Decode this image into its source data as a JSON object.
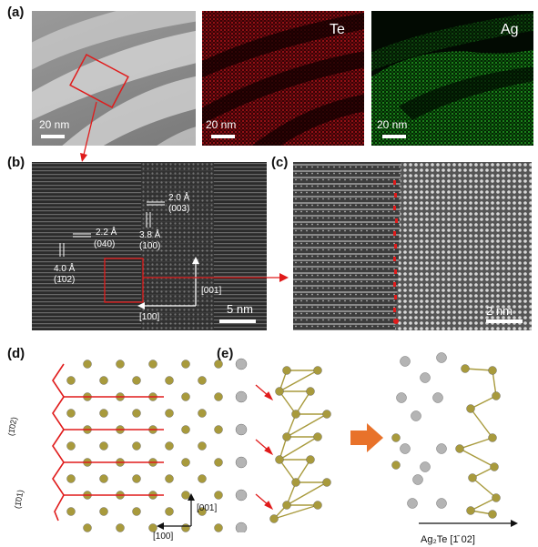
{
  "panels": {
    "a": "(a)",
    "b": "(b)",
    "c": "(c)",
    "d": "(d)",
    "e": "(e)"
  },
  "panel_a": {
    "scale1": "20 nm",
    "scale2": "20 nm",
    "scale3": "20 nm",
    "te_label": "Te",
    "ag_label": "Ag"
  },
  "panel_b": {
    "d1": "2.0 Å",
    "d1_plane": "(003)",
    "d2": "2.2 Å",
    "d2_plane": "(040)",
    "d3": "3.8 Å",
    "d3_plane": "(100)",
    "d4": "4.0 Å",
    "d4_plane": "(1̄02)",
    "axis_001": "[001]",
    "axis_100": "[100]",
    "scale": "5 nm"
  },
  "panel_c": {
    "scale": "2 nm"
  },
  "panel_d": {
    "plane1": "(1̄02)",
    "plane2": "(1̄01)",
    "axis_001": "[001]",
    "axis_100": "[100]"
  },
  "panel_e": {
    "caption": "Ag₂Te [1̄ 02]"
  },
  "colors": {
    "te_atom": "#a89a3c",
    "ag_atom": "#b4b4b4",
    "red": "#e01b1b",
    "arrow_orange": "#e8722a",
    "eds_te": "#c0151a",
    "eds_ag": "#22b022"
  }
}
